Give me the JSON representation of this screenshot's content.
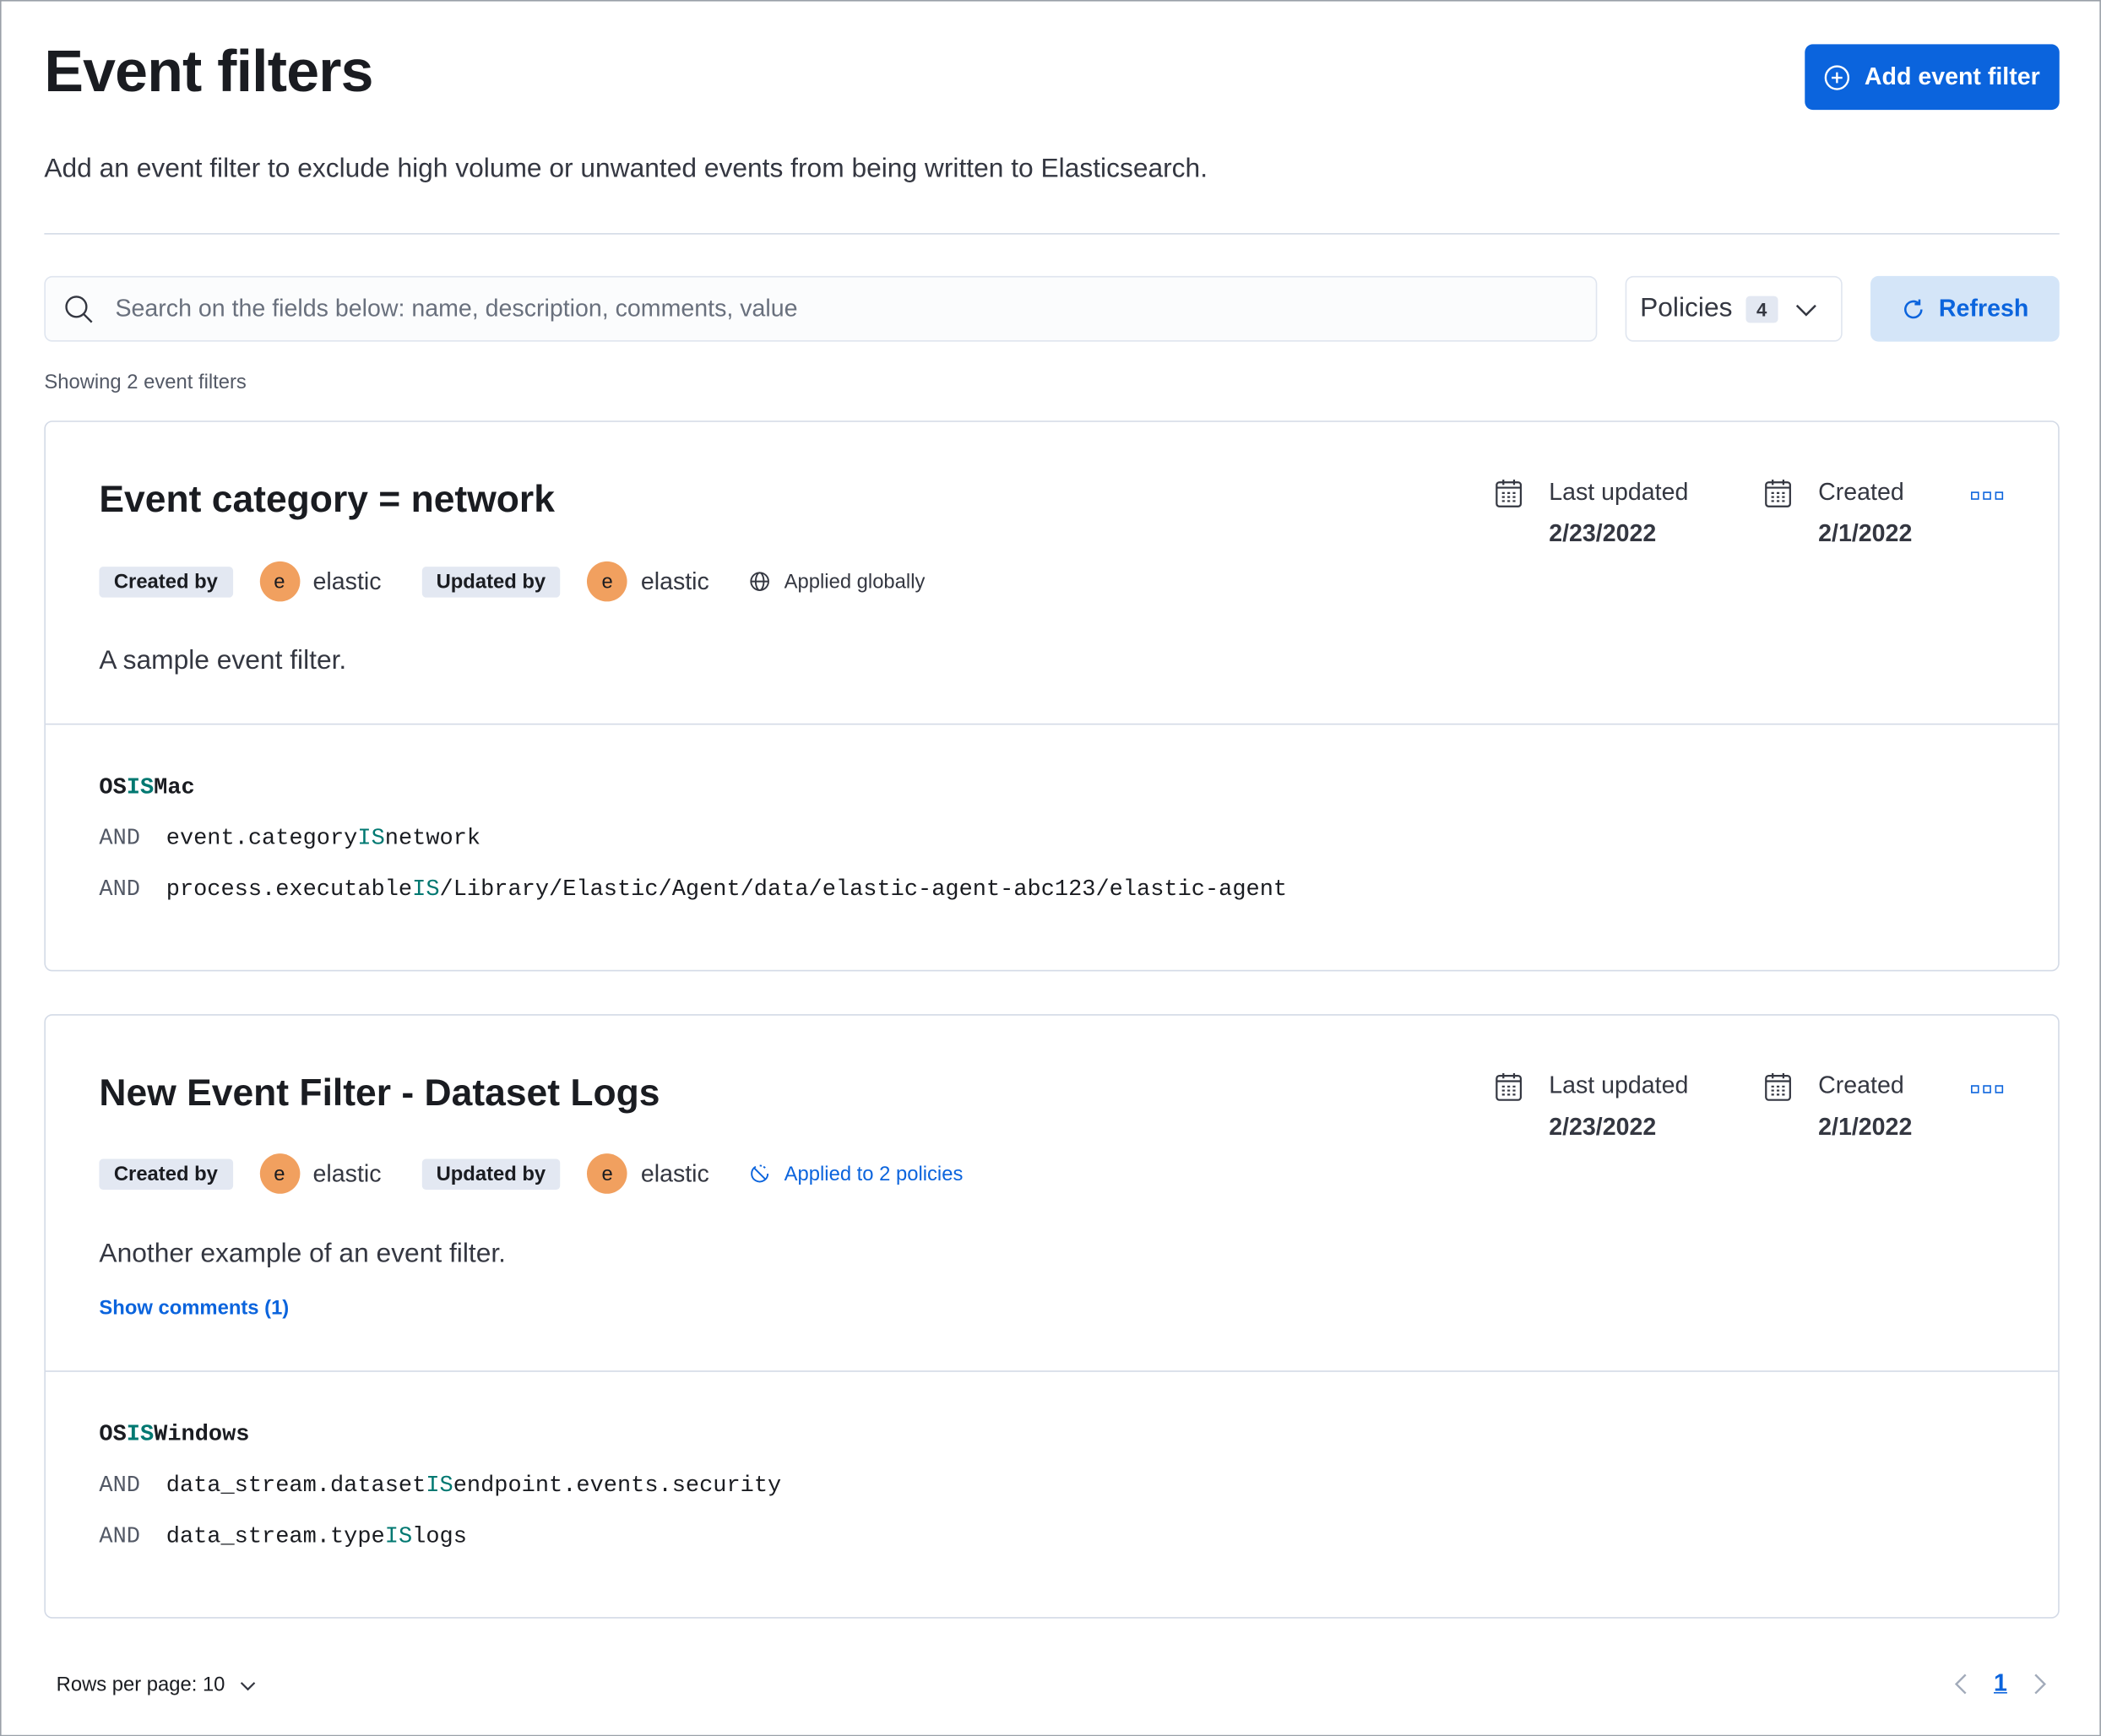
{
  "header": {
    "title": "Event filters",
    "add_button": "Add event filter",
    "description": "Add an event filter to exclude high volume or unwanted events from being written to Elasticsearch."
  },
  "toolbar": {
    "search_placeholder": "Search on the fields below: name, description, comments, value",
    "search_value": "",
    "policies_label": "Policies",
    "policies_count": "4",
    "refresh_label": "Refresh"
  },
  "showing": "Showing 2 event filters",
  "colors": {
    "accent": "#0b64dd",
    "operator": "#007871",
    "avatar": "#f1a05f"
  },
  "cards": [
    {
      "title": "Event category = network",
      "created_by_label": "Created by",
      "created_by": "elastic",
      "updated_by_label": "Updated by",
      "updated_by": "elastic",
      "avatar_initial": "e",
      "applied": "Applied globally",
      "applied_icon": "globe-icon",
      "description": "A sample event filter.",
      "last_updated_label": "Last updated",
      "last_updated": "2/23/2022",
      "created_label": "Created",
      "created": "2/1/2022",
      "conditions": [
        {
          "op": "",
          "field": "OS",
          "operator": "IS",
          "value": "Mac"
        },
        {
          "op": "AND",
          "field": "event.category",
          "operator": "IS",
          "value": "network"
        },
        {
          "op": "AND",
          "field": "process.executable",
          "operator": "IS",
          "value": "/Library/Elastic/Agent/data/elastic-agent-abc123/elastic-agent"
        }
      ]
    },
    {
      "title": "New Event Filter - Dataset Logs",
      "created_by_label": "Created by",
      "created_by": "elastic",
      "updated_by_label": "Updated by",
      "updated_by": "elastic",
      "avatar_initial": "e",
      "applied": "Applied to 2 policies",
      "applied_icon": "partial-policy-icon",
      "description": "Another example of an event filter.",
      "comments_link": "Show comments (1)",
      "last_updated_label": "Last updated",
      "last_updated": "2/23/2022",
      "created_label": "Created",
      "created": "2/1/2022",
      "conditions": [
        {
          "op": "",
          "field": "OS",
          "operator": "IS",
          "value": "Windows"
        },
        {
          "op": "AND",
          "field": "data_stream.dataset",
          "operator": "IS",
          "value": "endpoint.events.security"
        },
        {
          "op": "AND",
          "field": "data_stream.type",
          "operator": "IS",
          "value": "logs"
        }
      ]
    }
  ],
  "footer": {
    "rows_per_page": "Rows per page: 10",
    "current_page": "1"
  }
}
